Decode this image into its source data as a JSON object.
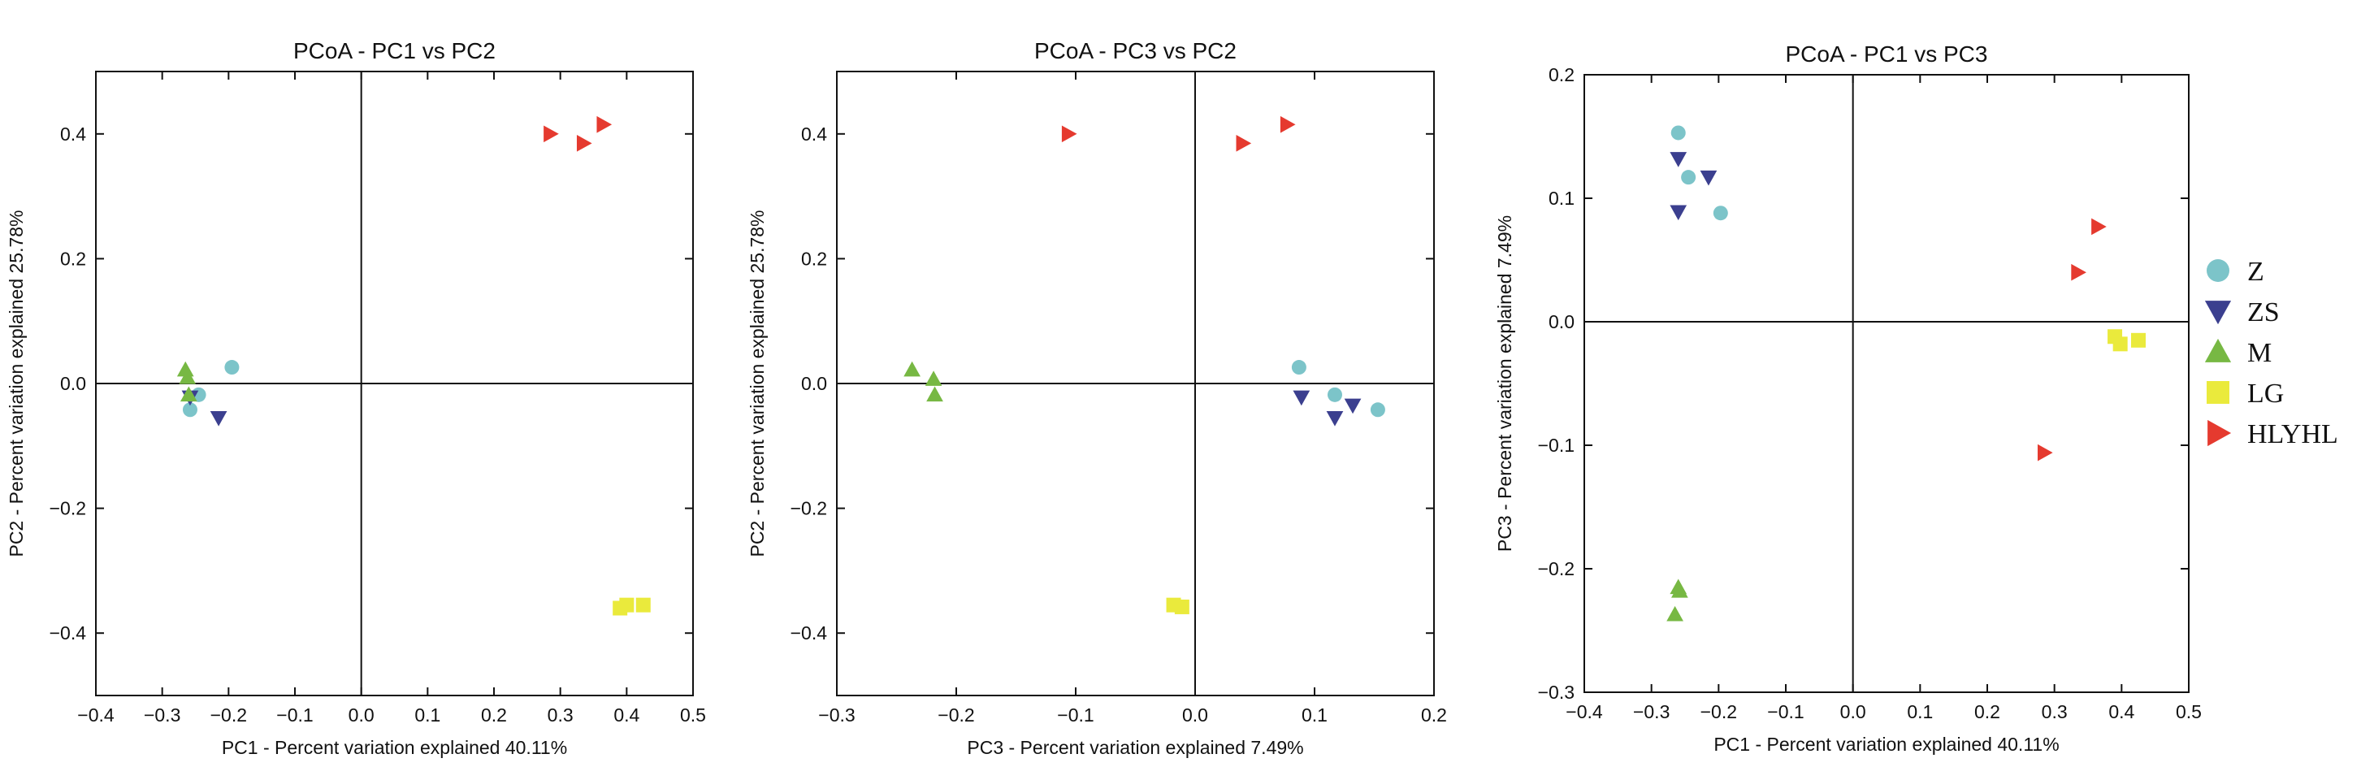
{
  "colors": {
    "Z": "#7cc4c9",
    "ZS": "#3b3f8f",
    "M": "#77b843",
    "LG": "#eaea3c",
    "HLYHL": "#e53a2f"
  },
  "legend": {
    "items": [
      {
        "label": "Z",
        "shape": "circle"
      },
      {
        "label": "ZS",
        "shape": "triangle-down"
      },
      {
        "label": "M",
        "shape": "triangle-up"
      },
      {
        "label": "LG",
        "shape": "square"
      },
      {
        "label": "HLYHL",
        "shape": "triangle-right"
      }
    ]
  },
  "chart_data": [
    {
      "type": "scatter",
      "title": "PCoA - PC1 vs PC2",
      "xlabel": "PC1 - Percent variation explained 40.11%",
      "ylabel": "PC2 - Percent variation explained 25.78%",
      "xlim": [
        -0.4,
        0.5
      ],
      "ylim": [
        -0.5,
        0.5
      ],
      "xticks": [
        "−0.4",
        "−0.3",
        "−0.2",
        "−0.1",
        "0.0",
        "0.1",
        "0.2",
        "0.3",
        "0.4",
        "0.5"
      ],
      "xtick_values": [
        -0.4,
        -0.3,
        -0.2,
        -0.1,
        0.0,
        0.1,
        0.2,
        0.3,
        0.4,
        0.5
      ],
      "yticks": [
        "−0.4",
        "−0.2",
        "0.0",
        "0.2",
        "0.4"
      ],
      "ytick_values": [
        -0.4,
        -0.2,
        0.0,
        0.2,
        0.4
      ],
      "series": [
        {
          "name": "Z",
          "points": [
            [
              -0.195,
              0.026
            ],
            [
              -0.245,
              -0.018
            ],
            [
              -0.258,
              -0.042
            ]
          ]
        },
        {
          "name": "ZS",
          "points": [
            [
              -0.215,
              -0.055
            ],
            [
              -0.258,
              -0.022
            ]
          ]
        },
        {
          "name": "M",
          "points": [
            [
              -0.265,
              0.022
            ],
            [
              -0.262,
              0.01
            ],
            [
              -0.26,
              -0.018
            ]
          ]
        },
        {
          "name": "LG",
          "points": [
            [
              0.39,
              -0.36
            ],
            [
              0.4,
              -0.355
            ],
            [
              0.425,
              -0.355
            ]
          ]
        },
        {
          "name": "HLYHL",
          "points": [
            [
              0.285,
              0.4
            ],
            [
              0.335,
              0.385
            ],
            [
              0.365,
              0.415
            ]
          ]
        }
      ]
    },
    {
      "type": "scatter",
      "title": "PCoA - PC3 vs PC2",
      "xlabel": "PC3 - Percent variation explained 7.49%",
      "ylabel": "PC2 - Percent variation explained 25.78%",
      "xlim": [
        -0.3,
        0.2
      ],
      "ylim": [
        -0.5,
        0.5
      ],
      "xticks": [
        "−0.3",
        "−0.2",
        "−0.1",
        "0.0",
        "0.1",
        "0.2"
      ],
      "xtick_values": [
        -0.3,
        -0.2,
        -0.1,
        0.0,
        0.1,
        0.2
      ],
      "yticks": [
        "−0.4",
        "−0.2",
        "0.0",
        "0.2",
        "0.4"
      ],
      "ytick_values": [
        -0.4,
        -0.2,
        0.0,
        0.2,
        0.4
      ],
      "series": [
        {
          "name": "Z",
          "points": [
            [
              0.087,
              0.026
            ],
            [
              0.117,
              -0.018
            ],
            [
              0.153,
              -0.042
            ]
          ]
        },
        {
          "name": "ZS",
          "points": [
            [
              0.089,
              -0.022
            ],
            [
              0.117,
              -0.055
            ],
            [
              0.132,
              -0.035
            ]
          ]
        },
        {
          "name": "M",
          "points": [
            [
              -0.237,
              0.022
            ],
            [
              -0.219,
              0.007
            ],
            [
              -0.218,
              -0.018
            ]
          ]
        },
        {
          "name": "LG",
          "points": [
            [
              -0.018,
              -0.355
            ],
            [
              -0.011,
              -0.358
            ]
          ]
        },
        {
          "name": "HLYHL",
          "points": [
            [
              -0.106,
              0.4
            ],
            [
              0.04,
              0.385
            ],
            [
              0.077,
              0.415
            ]
          ]
        }
      ]
    },
    {
      "type": "scatter",
      "title": "PCoA - PC1 vs PC3",
      "xlabel": "PC1 - Percent variation explained 40.11%",
      "ylabel": "PC3 - Percent variation explained 7.49%",
      "xlim": [
        -0.4,
        0.5
      ],
      "ylim": [
        -0.3,
        0.2
      ],
      "xticks": [
        "−0.4",
        "−0.3",
        "−0.2",
        "−0.1",
        "0.0",
        "0.1",
        "0.2",
        "0.3",
        "0.4",
        "0.5"
      ],
      "xtick_values": [
        -0.4,
        -0.3,
        -0.2,
        -0.1,
        0.0,
        0.1,
        0.2,
        0.3,
        0.4,
        0.5
      ],
      "yticks": [
        "−0.3",
        "−0.2",
        "−0.1",
        "0.0",
        "0.1",
        "0.2"
      ],
      "ytick_values": [
        -0.3,
        -0.2,
        -0.1,
        0.0,
        0.1,
        0.2
      ],
      "series": [
        {
          "name": "Z",
          "points": [
            [
              -0.26,
              0.153
            ],
            [
              -0.245,
              0.117
            ],
            [
              -0.197,
              0.088
            ]
          ]
        },
        {
          "name": "ZS",
          "points": [
            [
              -0.26,
              0.132
            ],
            [
              -0.26,
              0.089
            ],
            [
              -0.215,
              0.117
            ]
          ]
        },
        {
          "name": "M",
          "points": [
            [
              -0.26,
              -0.215
            ],
            [
              -0.258,
              -0.218
            ],
            [
              -0.265,
              -0.237
            ]
          ]
        },
        {
          "name": "LG",
          "points": [
            [
              0.39,
              -0.012
            ],
            [
              0.398,
              -0.018
            ],
            [
              0.425,
              -0.015
            ]
          ]
        },
        {
          "name": "HLYHL",
          "points": [
            [
              0.365,
              0.077
            ],
            [
              0.335,
              0.04
            ],
            [
              0.285,
              -0.106
            ]
          ]
        }
      ]
    }
  ]
}
